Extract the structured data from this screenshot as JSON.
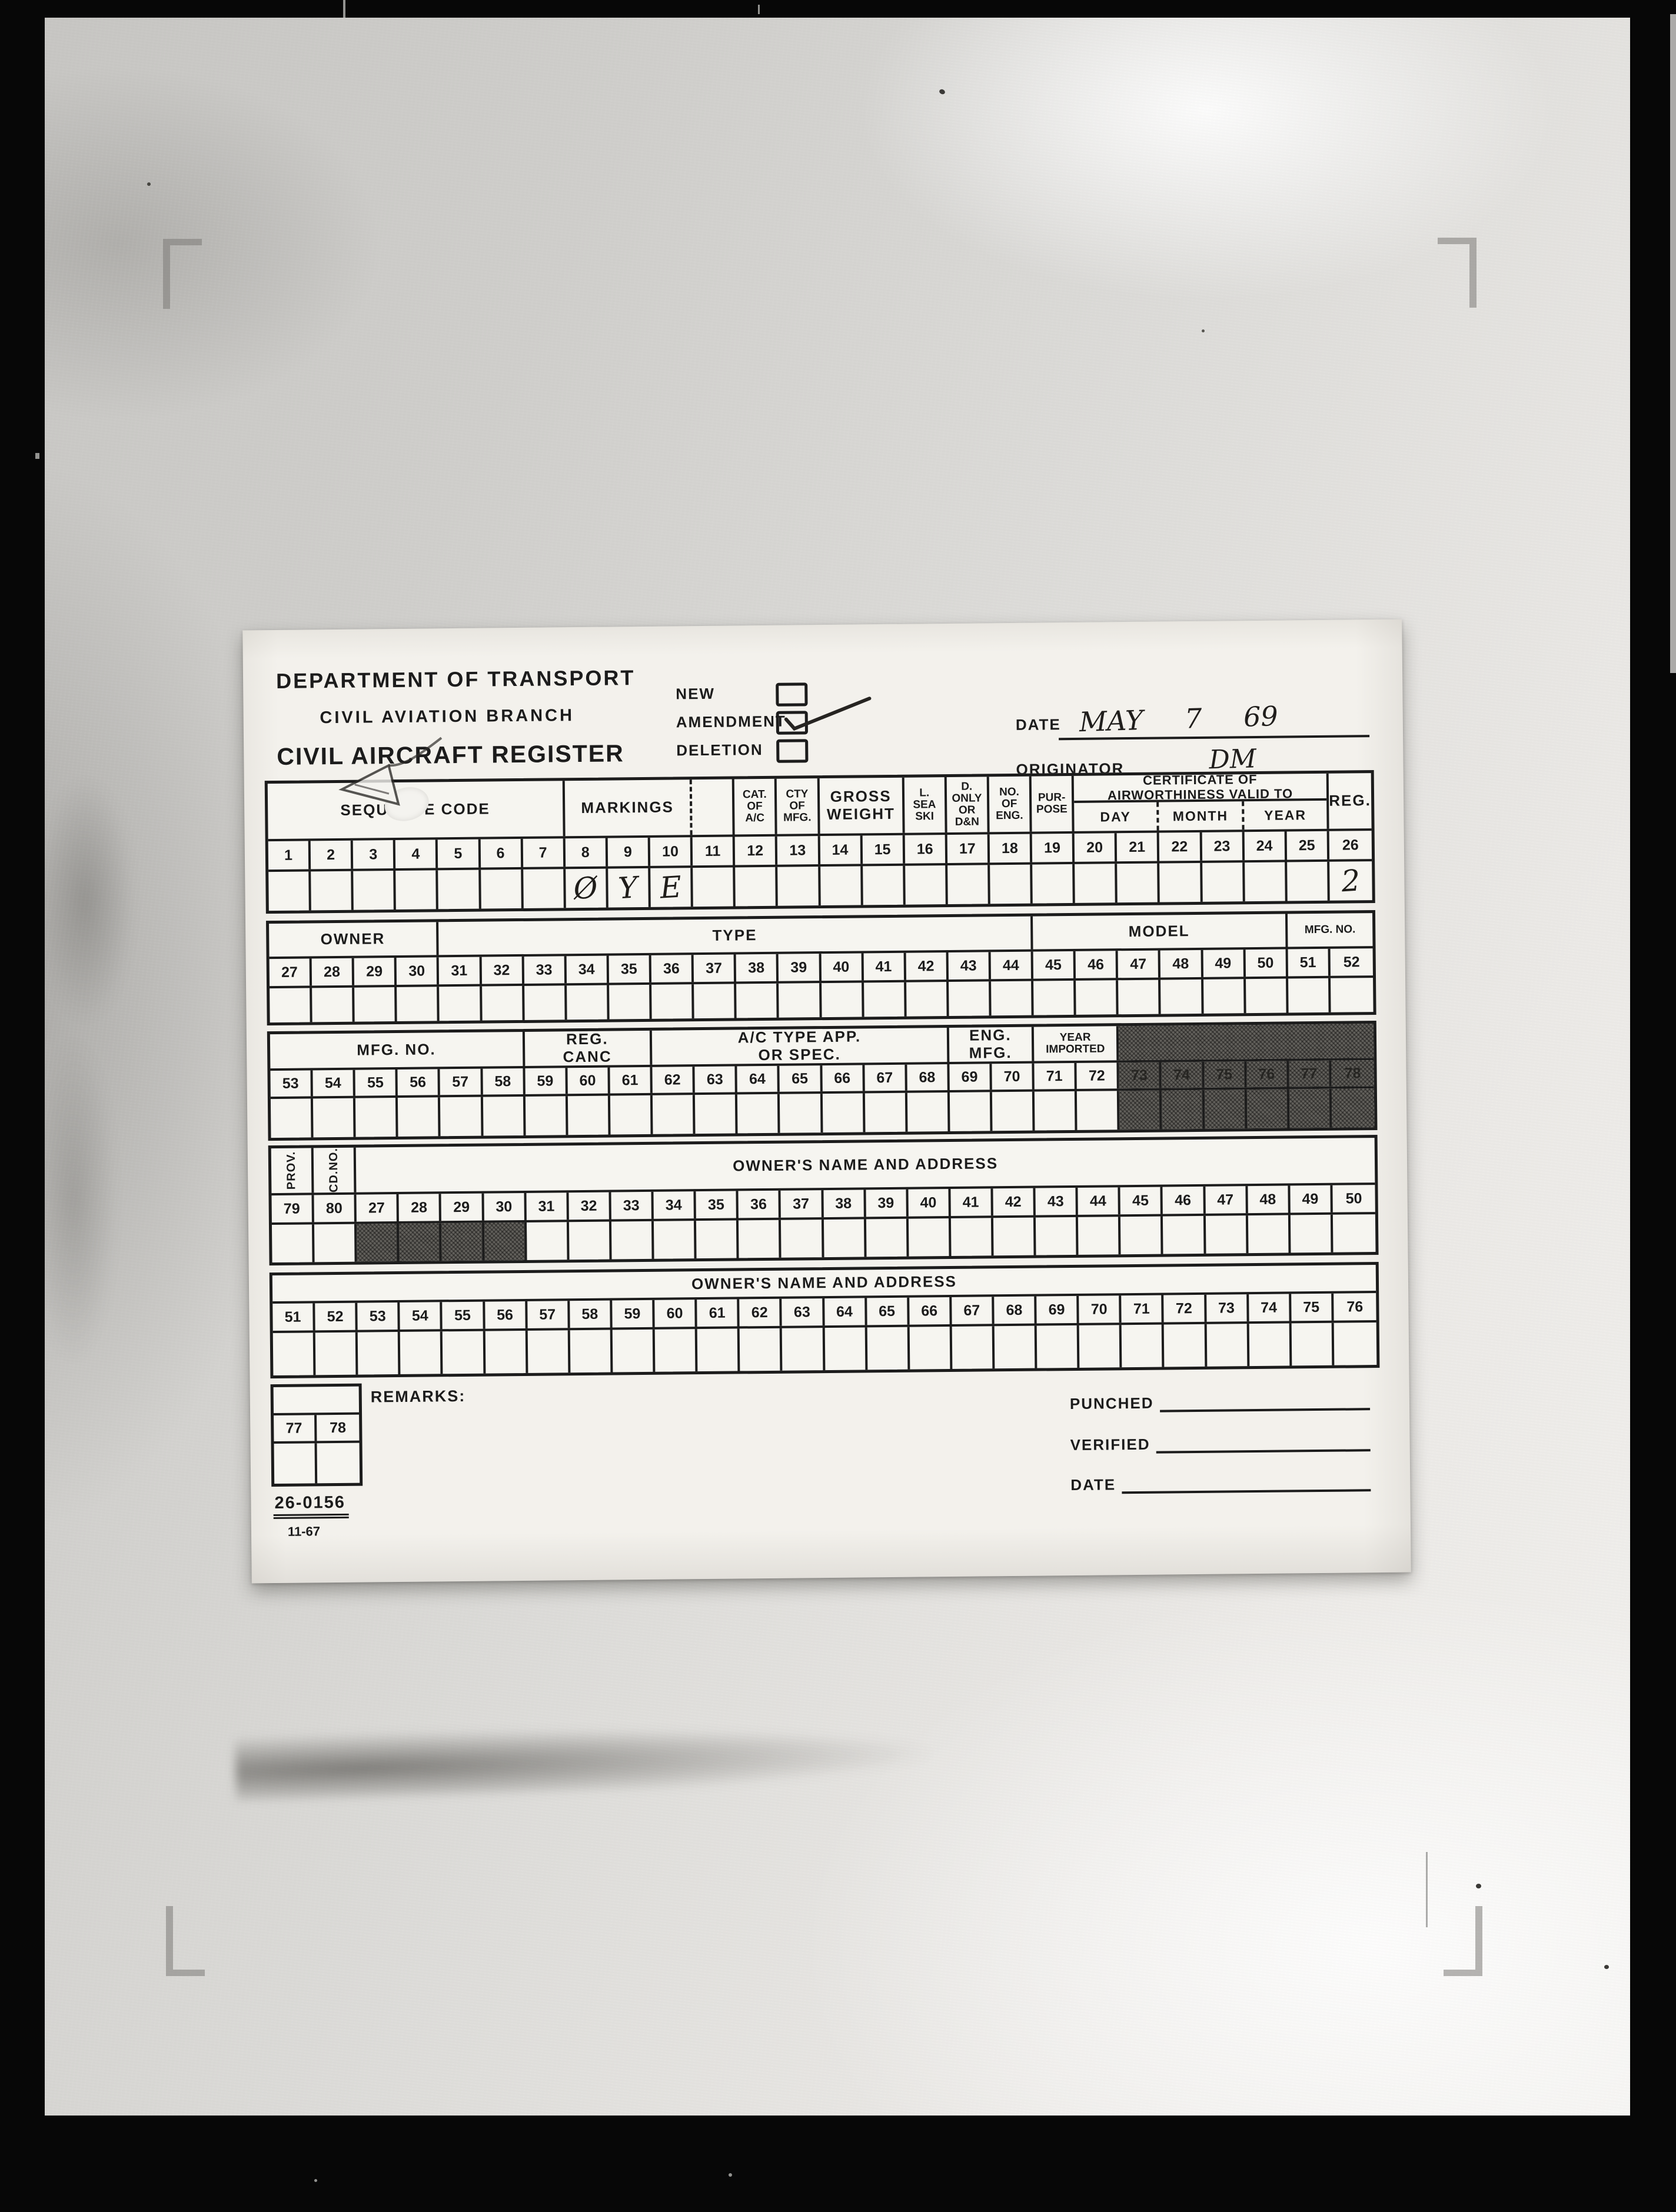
{
  "palette": {
    "ink": "#1c1c1c",
    "card": "#f3f1ec",
    "shaded_cell": "#64625d",
    "photo_gray": "#cfcecb"
  },
  "form": {
    "agency": "DEPARTMENT OF TRANSPORT",
    "branch": "CIVIL AVIATION BRANCH",
    "title": "CIVIL AIRCRAFT REGISTER",
    "action_checkboxes": [
      {
        "label": "NEW",
        "checked": false
      },
      {
        "label": "AMENDMENT",
        "checked": true
      },
      {
        "label": "DELETION",
        "checked": false
      }
    ],
    "date": {
      "label": "DATE",
      "value": "MAY 7 69"
    },
    "originator": {
      "label": "ORIGINATOR",
      "value": "DM"
    },
    "remarks_label": "REMARKS:",
    "footer_fields": [
      {
        "label": "PUNCHED"
      },
      {
        "label": "VERIFIED"
      },
      {
        "label": "DATE"
      }
    ],
    "form_number": "26-0156",
    "form_revision": "11-67",
    "bands": [
      {
        "id": "b1",
        "groups": [
          {
            "label": "SEQUENCE CODE",
            "span": 7
          },
          {
            "label": "MARKINGS",
            "span": 3,
            "dashed_right": true
          },
          {
            "label": "",
            "span": 1
          },
          {
            "label": "CAT.\nOF\nA/C",
            "span": 1,
            "small": true
          },
          {
            "label": "CTY\nOF\nMFG.",
            "span": 1,
            "small": true
          },
          {
            "label": "GROSS\nWEIGHT",
            "span": 2
          },
          {
            "label": "L.\nSEA\nSKI",
            "span": 1,
            "small": true
          },
          {
            "label": "D.\nONLY\nOR\nD&N",
            "span": 1,
            "small": true
          },
          {
            "label": "NO.\nOF\nENG.",
            "span": 1,
            "small": true
          },
          {
            "label": "PUR-\nPOSE",
            "span": 1,
            "small": true
          },
          {
            "label": "CERTIFICATE OF\nAIRWORTHINESS VALID TO",
            "span": 6,
            "sub": [
              {
                "label": "DAY",
                "span": 2
              },
              {
                "label": "MONTH",
                "span": 2
              },
              {
                "label": "YEAR",
                "span": 2
              }
            ]
          },
          {
            "label": "REG.",
            "span": 1
          }
        ],
        "numbers": [
          "1",
          "2",
          "3",
          "4",
          "5",
          "6",
          "7",
          "8",
          "9",
          "10",
          "11",
          "12",
          "13",
          "14",
          "15",
          "16",
          "17",
          "18",
          "19",
          "20",
          "21",
          "22",
          "23",
          "24",
          "25",
          "26"
        ],
        "entries": [
          {
            "col": "8",
            "value": "Ø"
          },
          {
            "col": "9",
            "value": "Y"
          },
          {
            "col": "10",
            "value": "E"
          },
          {
            "col": "26",
            "value": "2"
          }
        ]
      },
      {
        "id": "b2",
        "groups": [
          {
            "label": "OWNER",
            "span": 4
          },
          {
            "label": "TYPE",
            "span": 14
          },
          {
            "label": "MODEL",
            "span": 6
          },
          {
            "label": "MFG. NO.",
            "span": 2,
            "small": true
          }
        ],
        "numbers": [
          "27",
          "28",
          "29",
          "30",
          "31",
          "32",
          "33",
          "34",
          "35",
          "36",
          "37",
          "38",
          "39",
          "40",
          "41",
          "42",
          "43",
          "44",
          "45",
          "46",
          "47",
          "48",
          "49",
          "50",
          "51",
          "52"
        ],
        "entries": []
      },
      {
        "id": "b3",
        "groups": [
          {
            "label": "MFG. NO.",
            "span": 6
          },
          {
            "label": "REG.\nCANC",
            "span": 3
          },
          {
            "label": "A/C TYPE APP.\nOR SPEC.",
            "span": 7
          },
          {
            "label": "ENG.\nMFG.",
            "span": 2
          },
          {
            "label": "YEAR\nIMPORTED",
            "span": 2,
            "small": true
          },
          {
            "label": "",
            "span": 6,
            "shaded": true
          }
        ],
        "numbers": [
          "53",
          "54",
          "55",
          "56",
          "57",
          "58",
          "59",
          "60",
          "61",
          "62",
          "63",
          "64",
          "65",
          "66",
          "67",
          "68",
          "69",
          "70",
          "71",
          "72",
          "73",
          "74",
          "75",
          "76",
          "77",
          "78"
        ],
        "shaded_idx": [
          20,
          21,
          22,
          23,
          24,
          25
        ],
        "shaded_data_idx": [
          20,
          21,
          22,
          23,
          24,
          25
        ],
        "entries": []
      },
      {
        "id": "b4",
        "groups": [
          {
            "label": "PROV.",
            "span": 1,
            "vertical": true
          },
          {
            "label": "CD.NO.",
            "span": 1,
            "vertical": true
          },
          {
            "label": "OWNER'S NAME AND ADDRESS",
            "span": 24
          }
        ],
        "numbers": [
          "79",
          "80",
          "27",
          "28",
          "29",
          "30",
          "31",
          "32",
          "33",
          "34",
          "35",
          "36",
          "37",
          "38",
          "39",
          "40",
          "41",
          "42",
          "43",
          "44",
          "45",
          "46",
          "47",
          "48",
          "49",
          "50"
        ],
        "shaded_data_idx": [
          2,
          3,
          4,
          5
        ],
        "entries": []
      },
      {
        "id": "b5",
        "groups": [
          {
            "label": "OWNER'S NAME AND ADDRESS",
            "span": 26
          }
        ],
        "numbers": [
          "51",
          "52",
          "53",
          "54",
          "55",
          "56",
          "57",
          "58",
          "59",
          "60",
          "61",
          "62",
          "63",
          "64",
          "65",
          "66",
          "67",
          "68",
          "69",
          "70",
          "71",
          "72",
          "73",
          "74",
          "75",
          "76"
        ],
        "entries": []
      },
      {
        "id": "b6",
        "groups": [
          {
            "label": "",
            "span": 2
          }
        ],
        "numbers": [
          "77",
          "78"
        ],
        "entries": []
      }
    ]
  }
}
